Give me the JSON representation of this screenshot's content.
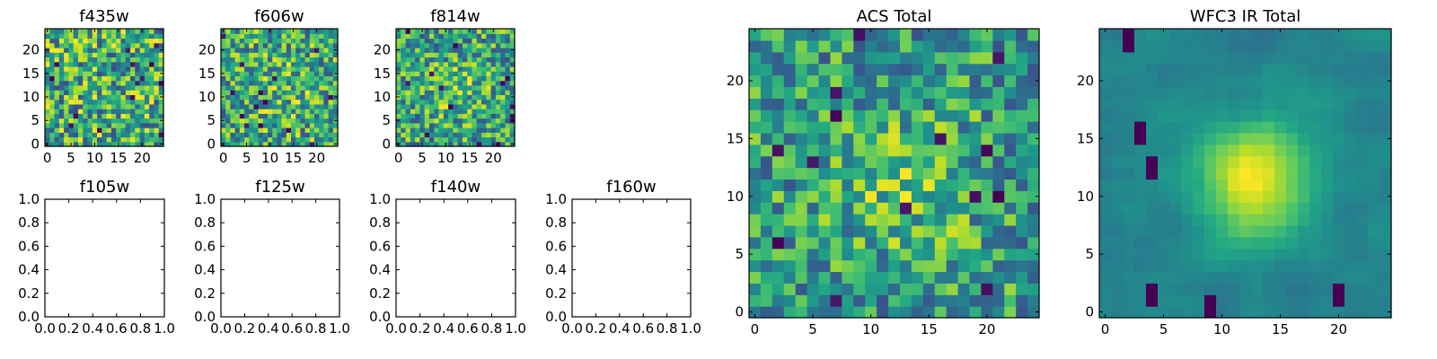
{
  "figure": {
    "background": "#ffffff"
  },
  "colormap": "viridis",
  "chart_data": [
    {
      "id": "f435w",
      "type": "heatmap",
      "title": "f435w",
      "grid_size": 25,
      "extent": [
        -0.5,
        24.5,
        -0.5,
        24.5
      ],
      "xticks": [
        0,
        5,
        10,
        15,
        20
      ],
      "yticks": [
        0,
        5,
        10,
        15,
        20
      ],
      "texture": "noise",
      "noise_seed": 11,
      "noise_amp": 0.34,
      "center_peak": 0.0
    },
    {
      "id": "f606w",
      "type": "heatmap",
      "title": "f606w",
      "grid_size": 25,
      "extent": [
        -0.5,
        24.5,
        -0.5,
        24.5
      ],
      "xticks": [
        0,
        5,
        10,
        15,
        20
      ],
      "yticks": [
        0,
        5,
        10,
        15,
        20
      ],
      "texture": "noise",
      "noise_seed": 23,
      "noise_amp": 0.32,
      "center_peak": 0.08
    },
    {
      "id": "f814w",
      "type": "heatmap",
      "title": "f814w",
      "grid_size": 25,
      "extent": [
        -0.5,
        24.5,
        -0.5,
        24.5
      ],
      "xticks": [
        0,
        5,
        10,
        15,
        20
      ],
      "yticks": [
        0,
        5,
        10,
        15,
        20
      ],
      "texture": "noise",
      "noise_seed": 37,
      "noise_amp": 0.32,
      "center_peak": 0.12
    },
    {
      "id": "f105w",
      "type": "empty",
      "title": "f105w",
      "xlim": [
        0,
        1
      ],
      "ylim": [
        0,
        1
      ],
      "xticks": [
        "0.0",
        "0.2",
        "0.4",
        "0.6",
        "0.8",
        "1.0"
      ],
      "yticks": [
        "0.0",
        "0.2",
        "0.4",
        "0.6",
        "0.8",
        "1.0"
      ]
    },
    {
      "id": "f125w",
      "type": "empty",
      "title": "f125w",
      "xlim": [
        0,
        1
      ],
      "ylim": [
        0,
        1
      ],
      "xticks": [
        "0.0",
        "0.2",
        "0.4",
        "0.6",
        "0.8",
        "1.0"
      ],
      "yticks": [
        "0.0",
        "0.2",
        "0.4",
        "0.6",
        "0.8",
        "1.0"
      ]
    },
    {
      "id": "f140w",
      "type": "empty",
      "title": "f140w",
      "xlim": [
        0,
        1
      ],
      "ylim": [
        0,
        1
      ],
      "xticks": [
        "0.0",
        "0.2",
        "0.4",
        "0.6",
        "0.8",
        "1.0"
      ],
      "yticks": [
        "0.0",
        "0.2",
        "0.4",
        "0.6",
        "0.8",
        "1.0"
      ]
    },
    {
      "id": "f160w",
      "type": "empty",
      "title": "f160w",
      "xlim": [
        0,
        1
      ],
      "ylim": [
        0,
        1
      ],
      "xticks": [
        "0.0",
        "0.2",
        "0.4",
        "0.6",
        "0.8",
        "1.0"
      ],
      "yticks": [
        "0.0",
        "0.2",
        "0.4",
        "0.6",
        "0.8",
        "1.0"
      ]
    },
    {
      "id": "acs_total",
      "type": "heatmap",
      "title": "ACS Total",
      "grid_size": 25,
      "extent": [
        -0.5,
        24.5,
        -0.5,
        24.5
      ],
      "xticks": [
        0,
        5,
        10,
        15,
        20
      ],
      "yticks": [
        0,
        5,
        10,
        15,
        20
      ],
      "texture": "noise",
      "noise_seed": 53,
      "noise_amp": 0.3,
      "center_peak": 0.18,
      "peak_center": [
        13,
        11
      ],
      "peak_sigma": 4.5
    },
    {
      "id": "wfc3_ir_total",
      "type": "heatmap",
      "title": "WFC3 IR Total",
      "grid_size": 25,
      "extent": [
        -0.5,
        24.5,
        -0.5,
        24.5
      ],
      "xticks": [
        0,
        5,
        10,
        15,
        20
      ],
      "yticks": [
        0,
        5,
        10,
        15,
        20
      ],
      "texture": "smooth",
      "noise_seed": 71,
      "noise_amp": 0.14,
      "center_peak": 0.55,
      "peak_center": [
        13,
        11.5
      ],
      "peak_sigma": 3.5,
      "dark_spots": [
        [
          4,
          2
        ],
        [
          9,
          1
        ],
        [
          20,
          2
        ],
        [
          3,
          16
        ],
        [
          2,
          24
        ],
        [
          4,
          13
        ]
      ]
    }
  ]
}
